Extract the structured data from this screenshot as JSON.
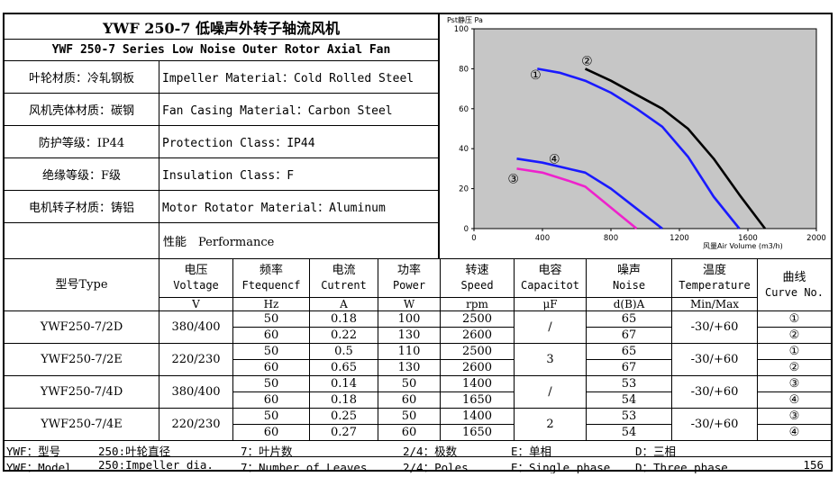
{
  "title": {
    "zh": "YWF 250-7 低噪声外转子轴流风机",
    "en": "YWF 250-7 Series Low Noise Outer Rotor Axial Fan"
  },
  "specs": [
    {
      "zh": "叶轮材质：冷轧钢板",
      "en": "Impeller Material：Cold Rolled Steel"
    },
    {
      "zh": "风机壳体材质：碳钢",
      "en": "Fan Casing Material：Carbon Steel"
    },
    {
      "zh": "防护等级：IP44",
      "en": "Protection Class：IP44"
    },
    {
      "zh": "绝缘等级：F级",
      "en": "Insulation Class：F"
    },
    {
      "zh": "电机转子材质：铸铝",
      "en": "Motor Rotator Material：Aluminum"
    }
  ],
  "performance_label": "性能　Performance",
  "table": {
    "headers": [
      {
        "zh": "型号Type"
      },
      {
        "zh": "电压",
        "en": "Voltage",
        "unit": "V"
      },
      {
        "zh": "频率",
        "en": "Ftequencf",
        "unit": "Hz"
      },
      {
        "zh": "电流",
        "en": "Cutrent",
        "unit": "A"
      },
      {
        "zh": "功率",
        "en": "Power",
        "unit": "W"
      },
      {
        "zh": "转速",
        "en": "Speed",
        "unit": "rpm"
      },
      {
        "zh": "电容",
        "en": "Capacitot",
        "unit": "μF"
      },
      {
        "zh": "噪声",
        "en": "Noise",
        "unit": "d(B)A"
      },
      {
        "zh": "温度",
        "en": "Temperature",
        "unit": "Min/Max"
      },
      {
        "zh": "曲线",
        "en": "Curve No."
      }
    ],
    "rows": [
      {
        "model": "YWF250-7/2D",
        "voltage": "380/400",
        "capacitor": "/",
        "temperature": "-30/+60",
        "sub": [
          {
            "hz": "50",
            "current": "0.18",
            "power": "100",
            "speed": "2500",
            "noise": "65",
            "curve": "①"
          },
          {
            "hz": "60",
            "current": "0.22",
            "power": "130",
            "speed": "2600",
            "noise": "67",
            "curve": "②"
          }
        ]
      },
      {
        "model": "YWF250-7/2E",
        "voltage": "220/230",
        "capacitor": "3",
        "temperature": "-30/+60",
        "sub": [
          {
            "hz": "50",
            "current": "0.5",
            "power": "110",
            "speed": "2500",
            "noise": "65",
            "curve": "①"
          },
          {
            "hz": "60",
            "current": "0.65",
            "power": "130",
            "speed": "2600",
            "noise": "67",
            "curve": "②"
          }
        ]
      },
      {
        "model": "YWF250-7/4D",
        "voltage": "380/400",
        "capacitor": "/",
        "temperature": "-30/+60",
        "sub": [
          {
            "hz": "50",
            "current": "0.14",
            "power": "50",
            "speed": "1400",
            "noise": "53",
            "curve": "③"
          },
          {
            "hz": "60",
            "current": "0.18",
            "power": "60",
            "speed": "1650",
            "noise": "54",
            "curve": "④"
          }
        ]
      },
      {
        "model": "YWF250-7/4E",
        "voltage": "220/230",
        "capacitor": "2",
        "temperature": "-30/+60",
        "sub": [
          {
            "hz": "50",
            "current": "0.25",
            "power": "50",
            "speed": "1400",
            "noise": "53",
            "curve": "③"
          },
          {
            "hz": "60",
            "current": "0.27",
            "power": "60",
            "speed": "1650",
            "noise": "54",
            "curve": "④"
          }
        ]
      }
    ]
  },
  "footer": {
    "zh": [
      "YWF：型号",
      "250:叶轮直径",
      "7：叶片数",
      "2/4：极数",
      "E：单相",
      "D：三相"
    ],
    "en": [
      "YWF：Model",
      "250:Impeller dia.",
      "7：Number of Leaves",
      "2/4：Poles",
      "E：Single phase",
      "D：Three phase"
    ],
    "page": "156"
  },
  "chart_data": {
    "type": "line",
    "ylabel": "Pst静压 Pa",
    "xlabel": "风量Air Volume (m3/h)",
    "xlim": [
      0,
      2000
    ],
    "ylim": [
      0,
      100
    ],
    "xticks": [
      "0",
      "400",
      "800",
      "1200",
      "1600",
      "2000"
    ],
    "yticks": [
      "0",
      "20",
      "40",
      "60",
      "80",
      "100"
    ],
    "grid": false,
    "background": "#c6c6c6",
    "series": [
      {
        "name": "①",
        "color": "#1a1aff",
        "x": [
          370,
          500,
          650,
          800,
          950,
          1100,
          1250,
          1400,
          1550
        ],
        "y": [
          80,
          78,
          74,
          68,
          60,
          51,
          36,
          16,
          0
        ],
        "label_at": [
          360,
          77
        ]
      },
      {
        "name": "②",
        "color": "#000000",
        "x": [
          650,
          800,
          950,
          1100,
          1250,
          1400,
          1550,
          1700
        ],
        "y": [
          80,
          74,
          67,
          60,
          50,
          35,
          17,
          0
        ],
        "label_at": [
          660,
          84
        ]
      },
      {
        "name": "③",
        "color": "#ee22cc",
        "x": [
          250,
          400,
          550,
          650,
          750,
          850,
          950
        ],
        "y": [
          30,
          28,
          24,
          21,
          14,
          7,
          0
        ],
        "label_at": [
          230,
          25
        ]
      },
      {
        "name": "④",
        "color": "#1a1aff",
        "x": [
          250,
          400,
          550,
          650,
          800,
          950,
          1100
        ],
        "y": [
          35,
          33,
          30,
          28,
          20,
          10,
          0
        ],
        "label_at": [
          470,
          35
        ]
      }
    ]
  }
}
